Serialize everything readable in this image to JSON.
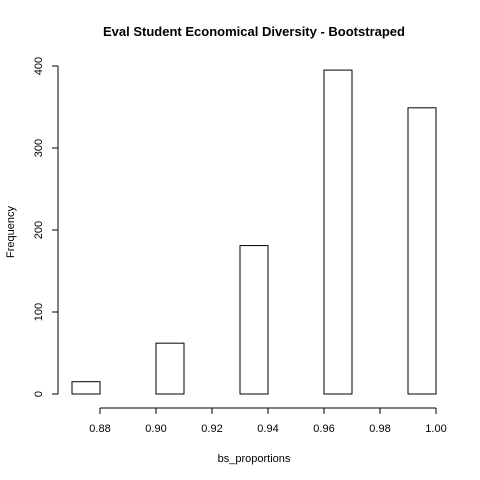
{
  "chart_data": {
    "type": "bar",
    "title": "Eval Student Economical Diversity - Bootstraped",
    "xlabel": "bs_proportions",
    "ylabel": "Frequency",
    "xlim": [
      0.87,
      1.0
    ],
    "ylim": [
      0,
      400
    ],
    "x_ticks": [
      "0.88",
      "0.90",
      "0.92",
      "0.94",
      "0.96",
      "0.98",
      "1.00"
    ],
    "y_ticks": [
      "0",
      "100",
      "200",
      "300",
      "400"
    ],
    "bins": [
      {
        "start": 0.87,
        "end": 0.88,
        "count": 15
      },
      {
        "start": 0.88,
        "end": 0.89,
        "count": 0
      },
      {
        "start": 0.89,
        "end": 0.9,
        "count": 0
      },
      {
        "start": 0.9,
        "end": 0.91,
        "count": 62
      },
      {
        "start": 0.91,
        "end": 0.92,
        "count": 0
      },
      {
        "start": 0.92,
        "end": 0.93,
        "count": 0
      },
      {
        "start": 0.93,
        "end": 0.94,
        "count": 181
      },
      {
        "start": 0.94,
        "end": 0.95,
        "count": 0
      },
      {
        "start": 0.95,
        "end": 0.96,
        "count": 0
      },
      {
        "start": 0.96,
        "end": 0.97,
        "count": 395
      },
      {
        "start": 0.97,
        "end": 0.98,
        "count": 0
      },
      {
        "start": 0.98,
        "end": 0.99,
        "count": 0
      },
      {
        "start": 0.99,
        "end": 1.0,
        "count": 349
      }
    ],
    "grid": false,
    "legend": "none"
  }
}
